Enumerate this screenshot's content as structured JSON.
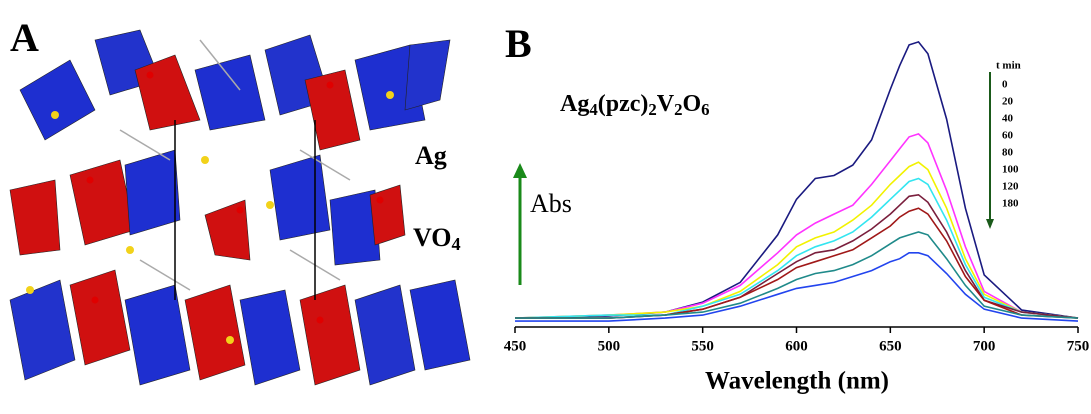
{
  "panel_a": {
    "label": "A",
    "annotations": [
      "Ag",
      "VO4"
    ]
  },
  "chart_data": {
    "type": "line",
    "panel_label": "B",
    "title": "Ag4(pzc)2V2O6",
    "x_label": "Wavelength (nm)",
    "y_label": "Abs",
    "legend_title": "t min",
    "x": [
      450,
      500,
      530,
      550,
      570,
      590,
      600,
      610,
      620,
      630,
      640,
      650,
      655,
      660,
      665,
      670,
      680,
      690,
      700,
      720,
      750
    ],
    "series": [
      {
        "name": "0",
        "color": "#1a1a80",
        "values": [
          0.03,
          0.037,
          0.05,
          0.084,
          0.15,
          0.31,
          0.43,
          0.5,
          0.51,
          0.545,
          0.63,
          0.8,
          0.88,
          0.95,
          0.96,
          0.92,
          0.7,
          0.4,
          0.175,
          0.057,
          0.03
        ]
      },
      {
        "name": "20",
        "color": "#ff33ff",
        "values": [
          0.03,
          0.04,
          0.05,
          0.08,
          0.14,
          0.25,
          0.31,
          0.35,
          0.38,
          0.41,
          0.48,
          0.56,
          0.6,
          0.64,
          0.65,
          0.62,
          0.46,
          0.27,
          0.12,
          0.05,
          0.03
        ]
      },
      {
        "name": "40",
        "color": "#f2f200",
        "values": [
          0.03,
          0.04,
          0.05,
          0.07,
          0.12,
          0.21,
          0.27,
          0.3,
          0.32,
          0.36,
          0.41,
          0.48,
          0.51,
          0.54,
          0.555,
          0.53,
          0.4,
          0.23,
          0.11,
          0.05,
          0.03
        ]
      },
      {
        "name": "60",
        "color": "#33e5f0",
        "values": [
          0.03,
          0.04,
          0.04,
          0.07,
          0.11,
          0.19,
          0.24,
          0.27,
          0.29,
          0.32,
          0.37,
          0.43,
          0.46,
          0.49,
          0.5,
          0.48,
          0.36,
          0.21,
          0.1,
          0.05,
          0.03
        ]
      },
      {
        "name": "80",
        "color": "#7a1f3d",
        "values": [
          0.03,
          0.03,
          0.04,
          0.06,
          0.1,
          0.18,
          0.22,
          0.25,
          0.26,
          0.29,
          0.33,
          0.38,
          0.41,
          0.44,
          0.445,
          0.42,
          0.32,
          0.19,
          0.09,
          0.05,
          0.03
        ]
      },
      {
        "name": "100",
        "color": "#a01818",
        "values": [
          0.03,
          0.03,
          0.04,
          0.06,
          0.1,
          0.16,
          0.2,
          0.22,
          0.24,
          0.26,
          0.3,
          0.34,
          0.37,
          0.39,
          0.4,
          0.38,
          0.29,
          0.17,
          0.09,
          0.04,
          0.03
        ]
      },
      {
        "name": "120",
        "color": "#1f8a8a",
        "values": [
          0.03,
          0.03,
          0.04,
          0.05,
          0.08,
          0.13,
          0.16,
          0.18,
          0.19,
          0.21,
          0.24,
          0.28,
          0.3,
          0.31,
          0.32,
          0.31,
          0.23,
          0.14,
          0.07,
          0.04,
          0.03
        ]
      },
      {
        "name": "180",
        "color": "#2244ee",
        "values": [
          0.02,
          0.02,
          0.03,
          0.04,
          0.07,
          0.11,
          0.13,
          0.14,
          0.15,
          0.17,
          0.19,
          0.22,
          0.23,
          0.25,
          0.25,
          0.24,
          0.18,
          0.11,
          0.06,
          0.03,
          0.02
        ]
      }
    ],
    "xlim": [
      450,
      750
    ],
    "xticks": [
      450,
      500,
      550,
      600,
      650,
      700,
      750
    ],
    "ylim": [
      0,
      1
    ]
  }
}
